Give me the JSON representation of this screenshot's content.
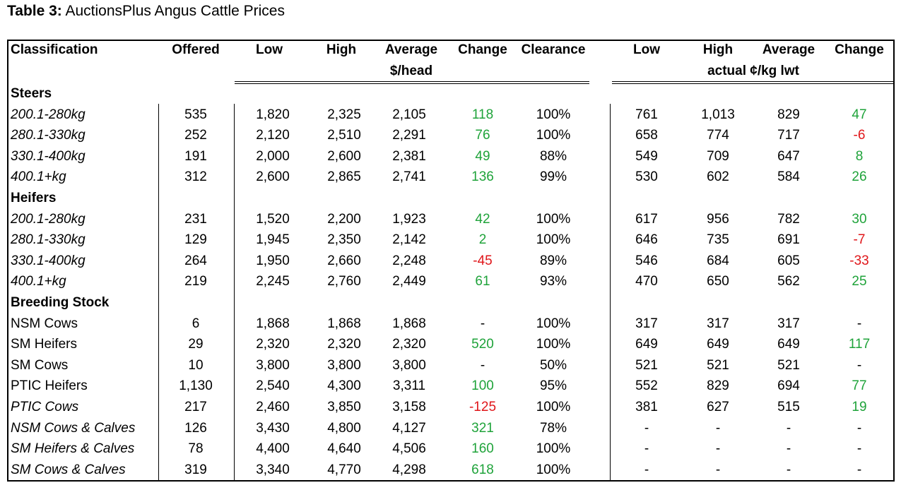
{
  "title": {
    "label": "Table 3:",
    "text": "AuctionsPlus Angus Cattle Prices"
  },
  "header": {
    "classification": "Classification",
    "offered": "Offered",
    "low": "Low",
    "high": "High",
    "average": "Average",
    "change": "Change",
    "clearance": "Clearance",
    "low2": "Low",
    "high2": "High",
    "average2": "Average",
    "change2": "Change",
    "unit_head": "$/head",
    "unit_kg": "actual ¢/kg lwt"
  },
  "rows": [
    {
      "type": "section",
      "label": "Steers"
    },
    {
      "type": "data",
      "label": "200.1-280kg",
      "italic": true,
      "offered": "535",
      "low": "1,820",
      "high": "2,325",
      "avg": "2,105",
      "change": "118",
      "change_sign": "pos",
      "clearance": "100%",
      "low2": "761",
      "high2": "1,013",
      "avg2": "829",
      "change2": "47",
      "change2_sign": "pos"
    },
    {
      "type": "data",
      "label": "280.1-330kg",
      "italic": true,
      "offered": "252",
      "low": "2,120",
      "high": "2,510",
      "avg": "2,291",
      "change": "76",
      "change_sign": "pos",
      "clearance": "100%",
      "low2": "658",
      "high2": "774",
      "avg2": "717",
      "change2": "-6",
      "change2_sign": "neg"
    },
    {
      "type": "data",
      "label": "330.1-400kg",
      "italic": true,
      "offered": "191",
      "low": "2,000",
      "high": "2,600",
      "avg": "2,381",
      "change": "49",
      "change_sign": "pos",
      "clearance": "88%",
      "low2": "549",
      "high2": "709",
      "avg2": "647",
      "change2": "8",
      "change2_sign": "pos"
    },
    {
      "type": "data",
      "label": "400.1+kg",
      "italic": true,
      "offered": "312",
      "low": "2,600",
      "high": "2,865",
      "avg": "2,741",
      "change": "136",
      "change_sign": "pos",
      "clearance": "99%",
      "low2": "530",
      "high2": "602",
      "avg2": "584",
      "change2": "26",
      "change2_sign": "pos"
    },
    {
      "type": "section",
      "label": "Heifers"
    },
    {
      "type": "data",
      "label": "200.1-280kg",
      "italic": true,
      "offered": "231",
      "low": "1,520",
      "high": "2,200",
      "avg": "1,923",
      "change": "42",
      "change_sign": "pos",
      "clearance": "100%",
      "low2": "617",
      "high2": "956",
      "avg2": "782",
      "change2": "30",
      "change2_sign": "pos"
    },
    {
      "type": "data",
      "label": "280.1-330kg",
      "italic": true,
      "offered": "129",
      "low": "1,945",
      "high": "2,350",
      "avg": "2,142",
      "change": "2",
      "change_sign": "pos",
      "clearance": "100%",
      "low2": "646",
      "high2": "735",
      "avg2": "691",
      "change2": "-7",
      "change2_sign": "neg"
    },
    {
      "type": "data",
      "label": "330.1-400kg",
      "italic": true,
      "offered": "264",
      "low": "1,950",
      "high": "2,660",
      "avg": "2,248",
      "change": "-45",
      "change_sign": "neg",
      "clearance": "89%",
      "low2": "546",
      "high2": "684",
      "avg2": "605",
      "change2": "-33",
      "change2_sign": "neg"
    },
    {
      "type": "data",
      "label": "400.1+kg",
      "italic": true,
      "offered": "219",
      "low": "2,245",
      "high": "2,760",
      "avg": "2,449",
      "change": "61",
      "change_sign": "pos",
      "clearance": "93%",
      "low2": "470",
      "high2": "650",
      "avg2": "562",
      "change2": "25",
      "change2_sign": "pos"
    },
    {
      "type": "section",
      "label": "Breeding Stock"
    },
    {
      "type": "data",
      "label": "NSM Cows",
      "italic": false,
      "offered": "6",
      "low": "1,868",
      "high": "1,868",
      "avg": "1,868",
      "change": "-",
      "change_sign": "none",
      "clearance": "100%",
      "low2": "317",
      "high2": "317",
      "avg2": "317",
      "change2": "-",
      "change2_sign": "none"
    },
    {
      "type": "data",
      "label": "SM Heifers",
      "italic": false,
      "offered": "29",
      "low": "2,320",
      "high": "2,320",
      "avg": "2,320",
      "change": "520",
      "change_sign": "pos",
      "clearance": "100%",
      "low2": "649",
      "high2": "649",
      "avg2": "649",
      "change2": "117",
      "change2_sign": "pos"
    },
    {
      "type": "data",
      "label": "SM Cows",
      "italic": false,
      "offered": "10",
      "low": "3,800",
      "high": "3,800",
      "avg": "3,800",
      "change": "-",
      "change_sign": "none",
      "clearance": "50%",
      "low2": "521",
      "high2": "521",
      "avg2": "521",
      "change2": "-",
      "change2_sign": "none"
    },
    {
      "type": "data",
      "label": "PTIC Heifers",
      "italic": false,
      "offered": "1,130",
      "low": "2,540",
      "high": "4,300",
      "avg": "3,311",
      "change": "100",
      "change_sign": "pos",
      "clearance": "95%",
      "low2": "552",
      "high2": "829",
      "avg2": "694",
      "change2": "77",
      "change2_sign": "pos"
    },
    {
      "type": "data",
      "label": "PTIC Cows",
      "italic": true,
      "offered": "217",
      "low": "2,460",
      "high": "3,850",
      "avg": "3,158",
      "change": "-125",
      "change_sign": "neg",
      "clearance": "100%",
      "low2": "381",
      "high2": "627",
      "avg2": "515",
      "change2": "19",
      "change2_sign": "pos"
    },
    {
      "type": "data",
      "label": "NSM Cows & Calves",
      "italic": true,
      "offered": "126",
      "low": "3,430",
      "high": "4,800",
      "avg": "4,127",
      "change": "321",
      "change_sign": "pos",
      "clearance": "78%",
      "low2": "-",
      "high2": "-",
      "avg2": "-",
      "change2": "-",
      "change2_sign": "none"
    },
    {
      "type": "data",
      "label": "SM Heifers & Calves",
      "italic": true,
      "offered": "78",
      "low": "4,400",
      "high": "4,640",
      "avg": "4,506",
      "change": "160",
      "change_sign": "pos",
      "clearance": "100%",
      "low2": "-",
      "high2": "-",
      "avg2": "-",
      "change2": "-",
      "change2_sign": "none"
    },
    {
      "type": "data",
      "label": "SM Cows & Calves",
      "italic": true,
      "offered": "319",
      "low": "3,340",
      "high": "4,770",
      "avg": "4,298",
      "change": "618",
      "change_sign": "pos",
      "clearance": "100%",
      "low2": "-",
      "high2": "-",
      "avg2": "-",
      "change2": "-",
      "change2_sign": "none"
    }
  ],
  "colors": {
    "positive": "#1fa33a",
    "negative": "#e0161a"
  }
}
